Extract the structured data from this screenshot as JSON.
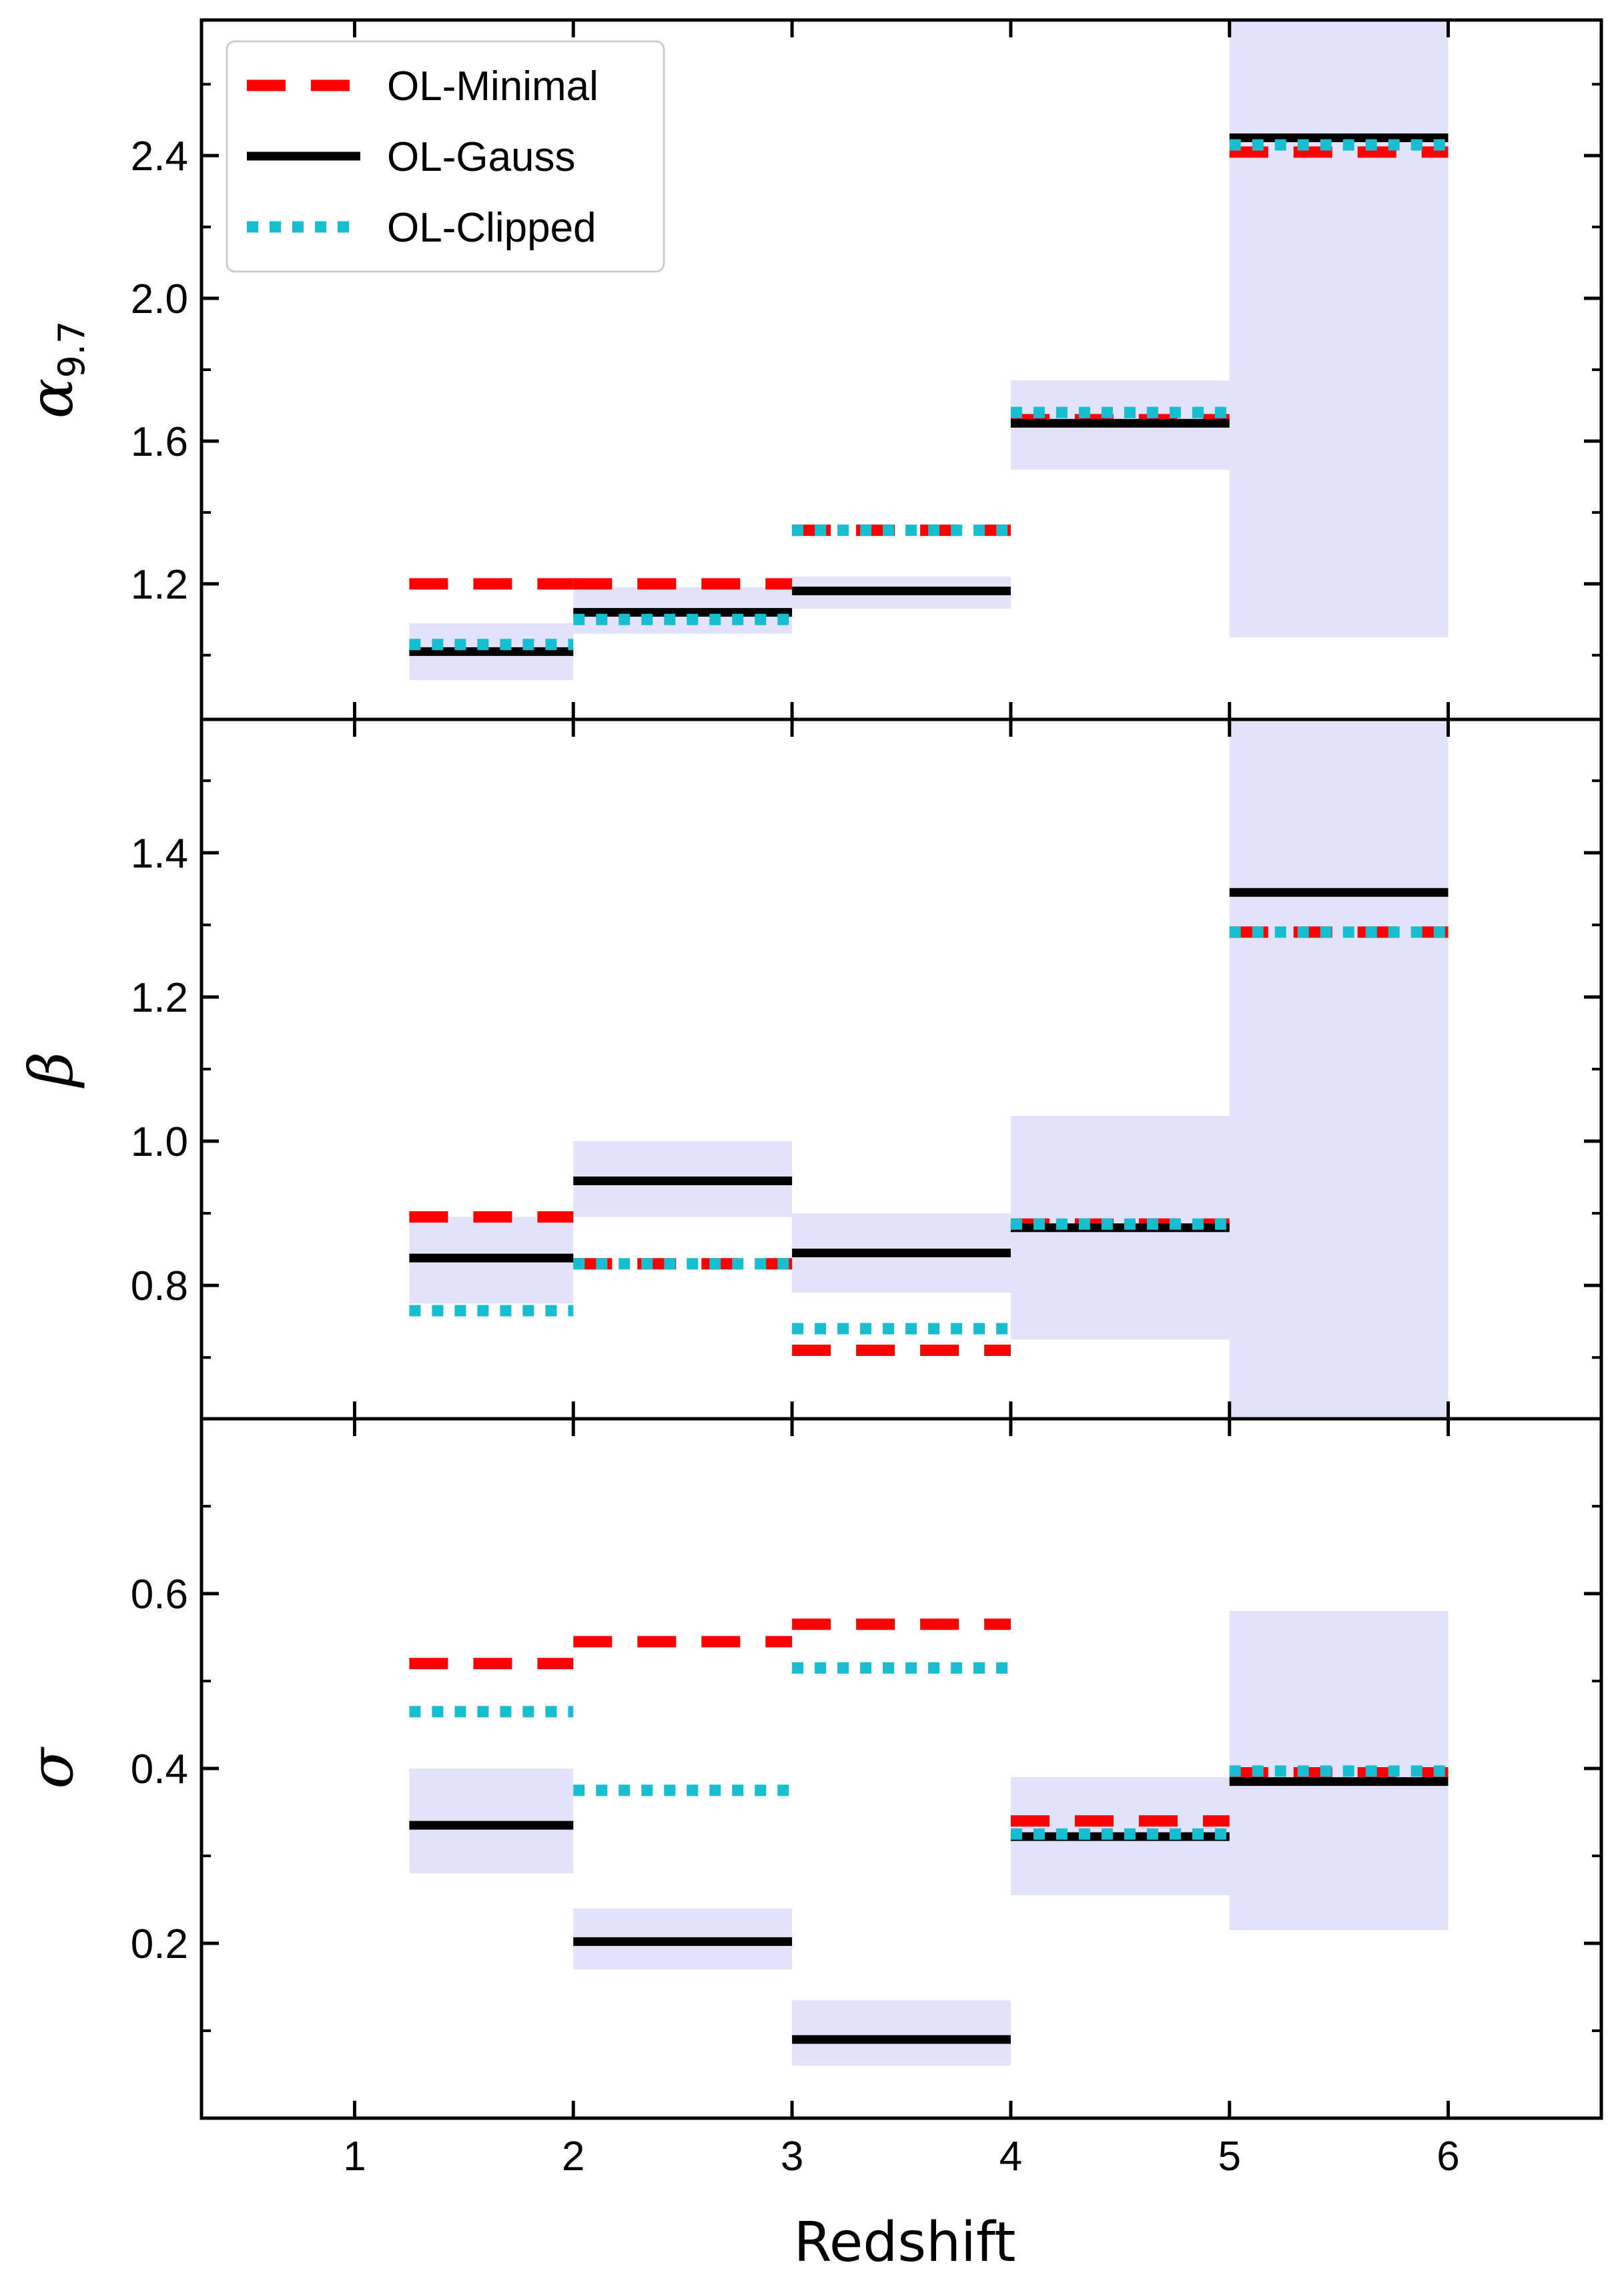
{
  "chart_data": {
    "type": "step",
    "xlabel": "Redshift",
    "xlim": [
      0.3,
      6.7
    ],
    "xticks": [
      1,
      2,
      3,
      4,
      5,
      6
    ],
    "bins": [
      [
        1.25,
        2
      ],
      [
        2,
        3
      ],
      [
        3,
        4
      ],
      [
        4,
        5
      ],
      [
        5,
        6
      ]
    ],
    "legend": {
      "placement": "top-left",
      "entries": [
        {
          "name": "OL-Minimal",
          "style": "dashed",
          "color": "#ff0000"
        },
        {
          "name": "OL-Gauss",
          "style": "solid",
          "color": "#000000"
        },
        {
          "name": "OL-Clipped",
          "style": "dotted",
          "color": "#17becf"
        }
      ]
    },
    "band_color": "#e2e2fb",
    "panels": [
      {
        "ylabel": "α",
        "ylabel_sub": "9.7",
        "ylim": [
          0.82,
          2.78
        ],
        "yticks": [
          1.2,
          1.6,
          2.0,
          2.4
        ],
        "yticklabels": [
          "1.2",
          "1.6",
          "2.0",
          "2.4"
        ],
        "yminor": [
          1.0,
          1.4,
          1.8,
          2.2,
          2.6
        ],
        "band_low": [
          0.93,
          1.06,
          1.13,
          1.52,
          1.05
        ],
        "band_high": [
          1.09,
          1.19,
          1.22,
          1.77,
          2.78
        ],
        "series": [
          {
            "name": "OL-Minimal",
            "values": [
              1.2,
              1.2,
              1.35,
              1.66,
              2.41
            ]
          },
          {
            "name": "OL-Gauss",
            "values": [
              1.01,
              1.12,
              1.18,
              1.65,
              2.45
            ]
          },
          {
            "name": "OL-Clipped",
            "values": [
              1.03,
              1.1,
              1.35,
              1.68,
              2.43
            ]
          }
        ]
      },
      {
        "ylabel": "β",
        "ylabel_sub": "",
        "ylim": [
          0.615,
          1.585
        ],
        "yticks": [
          0.8,
          1.0,
          1.2,
          1.4
        ],
        "yticklabels": [
          "0.8",
          "1.0",
          "1.2",
          "1.4"
        ],
        "yminor": [
          0.7,
          0.9,
          1.1,
          1.3,
          1.5
        ],
        "band_low": [
          0.775,
          0.895,
          0.79,
          0.725,
          0.615
        ],
        "band_high": [
          0.895,
          1.0,
          0.9,
          1.035,
          1.585
        ],
        "series": [
          {
            "name": "OL-Minimal",
            "values": [
              0.895,
              0.83,
              0.71,
              0.885,
              1.29
            ]
          },
          {
            "name": "OL-Gauss",
            "values": [
              0.838,
              0.945,
              0.845,
              0.88,
              1.345
            ]
          },
          {
            "name": "OL-Clipped",
            "values": [
              0.765,
              0.83,
              0.74,
              0.885,
              1.29
            ]
          }
        ]
      },
      {
        "ylabel": "σ",
        "ylabel_sub": "",
        "ylim": [
          0.0,
          0.8
        ],
        "yticks": [
          0.2,
          0.4,
          0.6
        ],
        "yticklabels": [
          "0.2",
          "0.4",
          "0.6"
        ],
        "yminor": [
          0.1,
          0.3,
          0.5,
          0.7
        ],
        "band_low": [
          0.28,
          0.17,
          0.06,
          0.255,
          0.215
        ],
        "band_high": [
          0.4,
          0.24,
          0.135,
          0.39,
          0.58
        ],
        "series": [
          {
            "name": "OL-Minimal",
            "values": [
              0.52,
              0.545,
              0.565,
              0.34,
              0.395
            ]
          },
          {
            "name": "OL-Gauss",
            "values": [
              0.335,
              0.202,
              0.09,
              0.322,
              0.385
            ]
          },
          {
            "name": "OL-Clipped",
            "values": [
              0.465,
              0.375,
              0.515,
              0.325,
              0.397
            ]
          }
        ]
      }
    ]
  }
}
